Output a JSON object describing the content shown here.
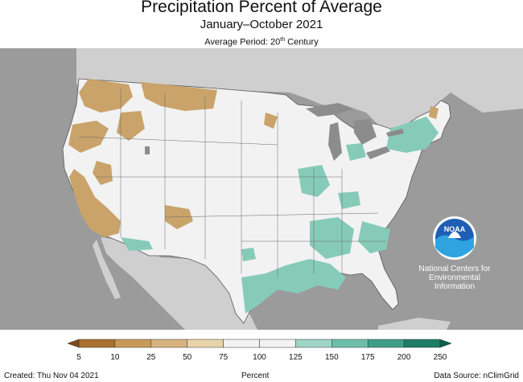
{
  "title": "Precipitation Percent of Average",
  "subtitle": "January–October 2021",
  "average_period": {
    "text": "Average Period: 20",
    "sup": "th",
    "suffix": " Century"
  },
  "logo": {
    "text": "NOAA",
    "org_line1": "National Centers for",
    "org_line2": "Environmental",
    "org_line3": "Information"
  },
  "legend": {
    "title": "Percent",
    "ticks": [
      "5",
      "10",
      "25",
      "50",
      "75",
      "100",
      "125",
      "150",
      "175",
      "200",
      "250"
    ],
    "colors": [
      "#7f4a1a",
      "#a8702e",
      "#c89a5a",
      "#d7b47f",
      "#e8d3aa",
      "#f2f2f2",
      "#f2f2f2",
      "#9fd5c6",
      "#6ebfa9",
      "#3f9f86",
      "#1d7d66",
      "#0e5f4c"
    ]
  },
  "footer": {
    "created": "Created: Thu Nov 04 2021",
    "source": "Data Source: nClimGrid"
  },
  "colors": {
    "background_ocean": "#9b9b9b",
    "land_outside": "#cfcfcf",
    "dry": "#c9a36a",
    "wet": "#86cbb8",
    "lakes": "#8c8c8c"
  }
}
